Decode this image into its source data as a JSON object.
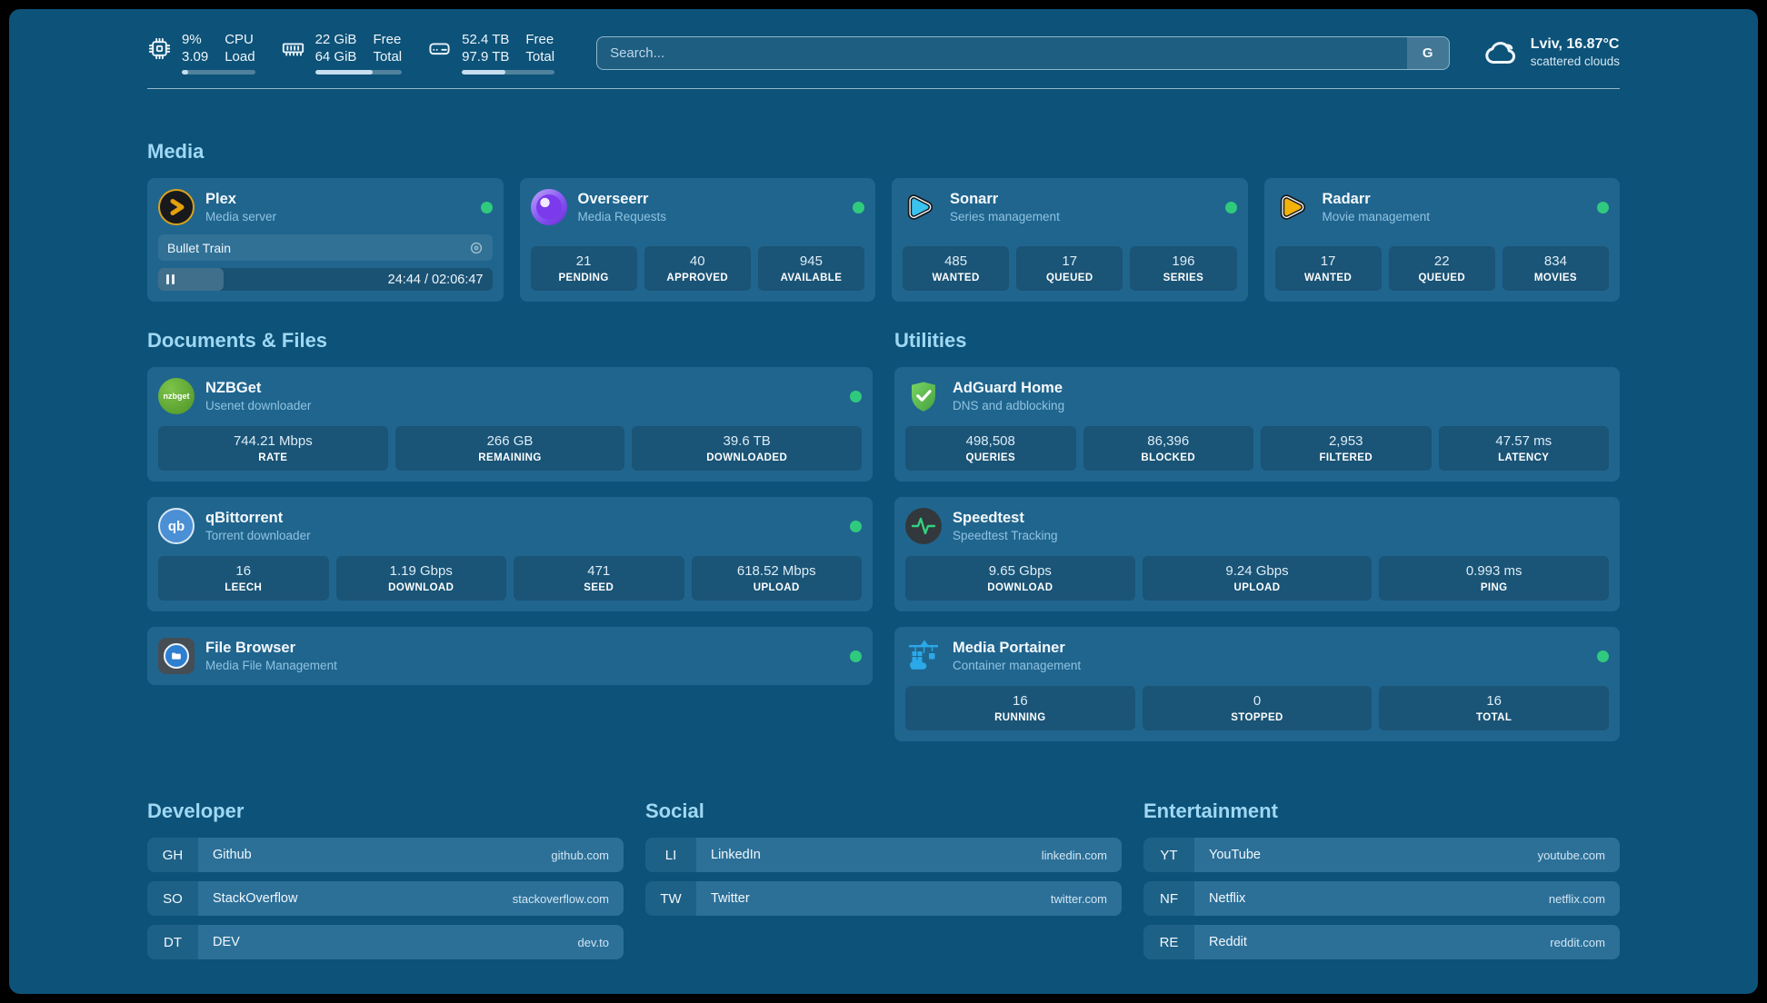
{
  "topbar": {
    "resources": [
      {
        "widget": "cpu",
        "v1": "9%",
        "v2": "3.09",
        "l1": "CPU",
        "l2": "Load",
        "progress": 9
      },
      {
        "widget": "memory",
        "v1": "22 GiB",
        "v2": "64 GiB",
        "l1": "Free",
        "l2": "Total",
        "progress": 66
      },
      {
        "widget": "disk",
        "v1": "52.4 TB",
        "v2": "97.9 TB",
        "l1": "Free",
        "l2": "Total",
        "progress": 47
      }
    ],
    "search": {
      "placeholder": "Search...",
      "button_label": "G"
    },
    "weather": {
      "headline": "Lviv, 16.87°C",
      "condition": "scattered clouds"
    }
  },
  "sections": {
    "media": {
      "heading": "Media",
      "plex": {
        "title": "Plex",
        "subtitle": "Media server",
        "now_playing": "Bullet Train",
        "time": "24:44 / 02:06:47",
        "progress_percent": 19.5
      },
      "overseerr": {
        "title": "Overseerr",
        "subtitle": "Media Requests",
        "stats": [
          {
            "value": "21",
            "label": "PENDING"
          },
          {
            "value": "40",
            "label": "APPROVED"
          },
          {
            "value": "945",
            "label": "AVAILABLE"
          }
        ]
      },
      "sonarr": {
        "title": "Sonarr",
        "subtitle": "Series management",
        "stats": [
          {
            "value": "485",
            "label": "WANTED"
          },
          {
            "value": "17",
            "label": "QUEUED"
          },
          {
            "value": "196",
            "label": "SERIES"
          }
        ]
      },
      "radarr": {
        "title": "Radarr",
        "subtitle": "Movie management",
        "stats": [
          {
            "value": "17",
            "label": "WANTED"
          },
          {
            "value": "22",
            "label": "QUEUED"
          },
          {
            "value": "834",
            "label": "MOVIES"
          }
        ]
      }
    },
    "documents": {
      "heading": "Documents & Files",
      "nzbget": {
        "title": "NZBGet",
        "subtitle": "Usenet downloader",
        "stats": [
          {
            "value": "744.21 Mbps",
            "label": "RATE"
          },
          {
            "value": "266 GB",
            "label": "REMAINING"
          },
          {
            "value": "39.6 TB",
            "label": "DOWNLOADED"
          }
        ]
      },
      "qbittorrent": {
        "title": "qBittorrent",
        "subtitle": "Torrent downloader",
        "stats": [
          {
            "value": "16",
            "label": "LEECH"
          },
          {
            "value": "1.19 Gbps",
            "label": "DOWNLOAD"
          },
          {
            "value": "471",
            "label": "SEED"
          },
          {
            "value": "618.52 Mbps",
            "label": "UPLOAD"
          }
        ]
      },
      "filebrowser": {
        "title": "File Browser",
        "subtitle": "Media File Management"
      }
    },
    "utilities": {
      "heading": "Utilities",
      "adguard": {
        "title": "AdGuard Home",
        "subtitle": "DNS and adblocking",
        "stats": [
          {
            "value": "498,508",
            "label": "QUERIES"
          },
          {
            "value": "86,396",
            "label": "BLOCKED"
          },
          {
            "value": "2,953",
            "label": "FILTERED"
          },
          {
            "value": "47.57 ms",
            "label": "LATENCY"
          }
        ]
      },
      "speedtest": {
        "title": "Speedtest",
        "subtitle": "Speedtest Tracking",
        "stats": [
          {
            "value": "9.65 Gbps",
            "label": "DOWNLOAD"
          },
          {
            "value": "9.24 Gbps",
            "label": "UPLOAD"
          },
          {
            "value": "0.993 ms",
            "label": "PING"
          }
        ]
      },
      "portainer": {
        "title": "Media Portainer",
        "subtitle": "Container management",
        "stats": [
          {
            "value": "16",
            "label": "RUNNING"
          },
          {
            "value": "0",
            "label": "STOPPED"
          },
          {
            "value": "16",
            "label": "TOTAL"
          }
        ]
      }
    },
    "bookmarks": [
      {
        "heading": "Developer",
        "links": [
          {
            "abbr": "GH",
            "name": "Github",
            "domain": "github.com"
          },
          {
            "abbr": "SO",
            "name": "StackOverflow",
            "domain": "stackoverflow.com"
          },
          {
            "abbr": "DT",
            "name": "DEV",
            "domain": "dev.to"
          }
        ]
      },
      {
        "heading": "Social",
        "links": [
          {
            "abbr": "LI",
            "name": "LinkedIn",
            "domain": "linkedin.com"
          },
          {
            "abbr": "TW",
            "name": "Twitter",
            "domain": "twitter.com"
          }
        ]
      },
      {
        "heading": "Entertainment",
        "links": [
          {
            "abbr": "YT",
            "name": "YouTube",
            "domain": "youtube.com"
          },
          {
            "abbr": "NF",
            "name": "Netflix",
            "domain": "netflix.com"
          },
          {
            "abbr": "RE",
            "name": "Reddit",
            "domain": "reddit.com"
          }
        ]
      }
    ]
  },
  "icons": {
    "cpu": "chip",
    "memory": "ram-stick",
    "disk": "hard-drive",
    "weather": "cloud",
    "plex": "amber-chevron-circle",
    "overseerr": "purple-eye-circle",
    "sonarr": "cyan-play-triangle",
    "radarr": "amber-play-triangle",
    "nzbget_badge_text": "nzbget",
    "qbittorrent_badge_text": "qb",
    "adguard": "green-shield-check",
    "speedtest": "pulse-circle",
    "filebrowser": "folder-disc",
    "portainer": "container-crane",
    "status": "green-dot",
    "now_playing_control": "pause"
  },
  "colors": {
    "background": "#0d5278",
    "card": "#20658e",
    "heading": "#9fd8f4",
    "status_green": "#2fca7d",
    "plex_amber": "#e5a00d",
    "sonarr_cyan": "#3ac3ef",
    "radarr_amber": "#f3b20b",
    "adguard_green": "#5cbb4c",
    "portainer_blue": "#2aa9e9"
  }
}
